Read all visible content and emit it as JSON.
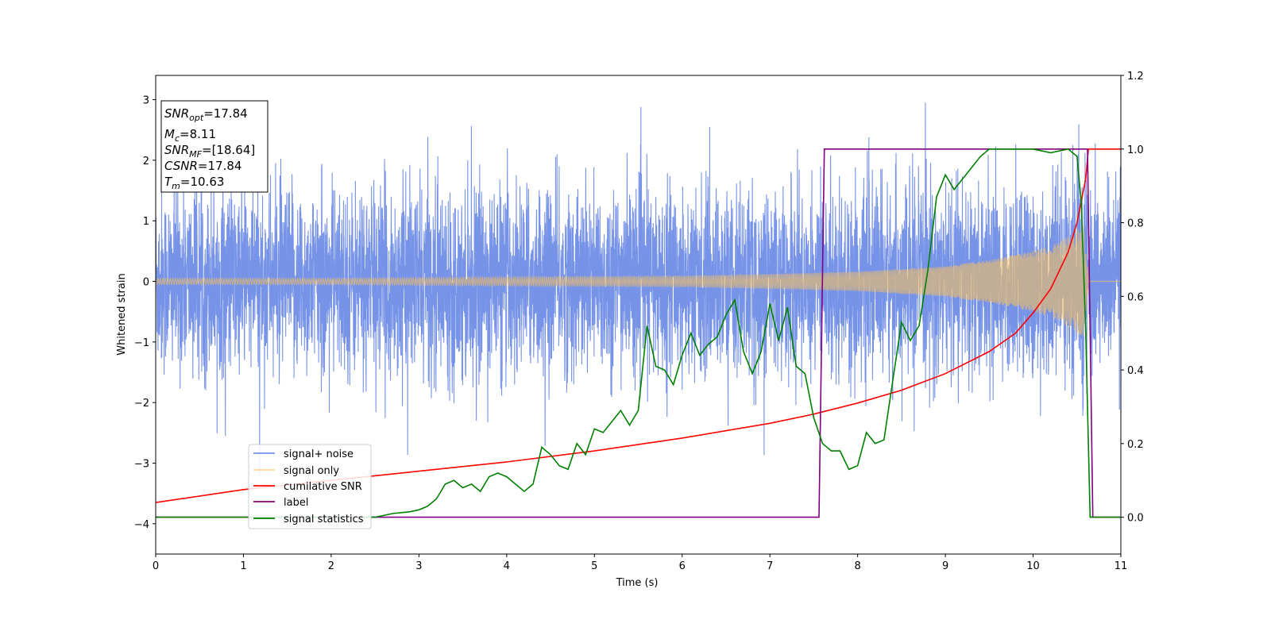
{
  "chart_data": {
    "type": "line",
    "xlabel": "Time (s)",
    "ylabel_left": "Whitened strain",
    "ylabel_right": "",
    "xlim": [
      0,
      11
    ],
    "ylim_left": [
      -4.5,
      3.4
    ],
    "ylim_right": [
      -0.1,
      1.2
    ],
    "xticks": [
      "0",
      "1",
      "2",
      "3",
      "4",
      "5",
      "6",
      "7",
      "8",
      "9",
      "10",
      "11"
    ],
    "yticks_left": [
      {
        "v": 3,
        "label": "3"
      },
      {
        "v": 2,
        "label": "2"
      },
      {
        "v": 1,
        "label": "1"
      },
      {
        "v": 0,
        "label": "0"
      },
      {
        "v": -1,
        "label": "−1"
      },
      {
        "v": -2,
        "label": "−2"
      },
      {
        "v": -3,
        "label": "−3"
      },
      {
        "v": -4,
        "label": "−4"
      }
    ],
    "yticks_right": [
      {
        "v": 0.0,
        "label": "0.0"
      },
      {
        "v": 0.2,
        "label": "0.2"
      },
      {
        "v": 0.4,
        "label": "0.4"
      },
      {
        "v": 0.6,
        "label": "0.6"
      },
      {
        "v": 0.8,
        "label": "0.8"
      },
      {
        "v": 1.0,
        "label": "1.0"
      },
      {
        "v": 1.2,
        "label": "1.2"
      }
    ],
    "grid": false,
    "legend_placement": "lower-left",
    "annotation": [
      {
        "sym": "SNR",
        "sub": "opt",
        "rest": "=17.84"
      },
      {
        "sym": "M",
        "sub": "c",
        "rest": "=8.11"
      },
      {
        "sym": "SNR",
        "sub": "MF",
        "rest": "=[18.64]"
      },
      {
        "sym": "CSNR",
        "sub": "",
        "rest": "=17.84"
      },
      {
        "sym": "T",
        "sub": "m",
        "rest": "=10.63"
      }
    ],
    "series": [
      {
        "name": "signal+ noise",
        "axis": "left",
        "color": "#6b8ae6",
        "noise_std": 0.75,
        "noise_extreme": [
          -4.2,
          3.03
        ]
      },
      {
        "name": "signal only",
        "axis": "left",
        "color": "#f5c060",
        "amplitude": [
          [
            0,
            0.05
          ],
          [
            2,
            0.05
          ],
          [
            4,
            0.07
          ],
          [
            6,
            0.09
          ],
          [
            7,
            0.12
          ],
          [
            8,
            0.16
          ],
          [
            9,
            0.25
          ],
          [
            9.5,
            0.35
          ],
          [
            10,
            0.5
          ],
          [
            10.3,
            0.65
          ],
          [
            10.5,
            0.85
          ],
          [
            10.6,
            0.95
          ],
          [
            10.63,
            0.0
          ],
          [
            11,
            0.0
          ]
        ]
      },
      {
        "name": "cumilative SNR",
        "axis": "right",
        "color": "#ff0000",
        "x": [
          0,
          1,
          2,
          3,
          4,
          5,
          6,
          7,
          7.5,
          8,
          8.5,
          9,
          9.5,
          9.8,
          10,
          10.2,
          10.4,
          10.5,
          10.6,
          10.63,
          11
        ],
        "y": [
          0.04,
          0.075,
          0.1,
          0.125,
          0.15,
          0.18,
          0.215,
          0.255,
          0.28,
          0.31,
          0.345,
          0.39,
          0.45,
          0.5,
          0.555,
          0.62,
          0.72,
          0.8,
          0.92,
          1.0,
          1.0
        ]
      },
      {
        "name": "label",
        "axis": "right",
        "color": "#800080",
        "x": [
          0,
          7.56,
          7.62,
          10.62,
          10.68,
          11
        ],
        "y": [
          0,
          0,
          1,
          1,
          0,
          0
        ]
      },
      {
        "name": "signal statistics",
        "axis": "right",
        "color": "#008000",
        "x": [
          0,
          2.5,
          2.7,
          2.9,
          3.0,
          3.1,
          3.2,
          3.3,
          3.4,
          3.5,
          3.6,
          3.7,
          3.8,
          3.9,
          4.0,
          4.1,
          4.2,
          4.3,
          4.4,
          4.5,
          4.6,
          4.7,
          4.8,
          4.9,
          5.0,
          5.1,
          5.2,
          5.3,
          5.4,
          5.5,
          5.6,
          5.7,
          5.8,
          5.9,
          6.0,
          6.1,
          6.2,
          6.3,
          6.4,
          6.5,
          6.6,
          6.7,
          6.8,
          6.9,
          7.0,
          7.1,
          7.2,
          7.3,
          7.4,
          7.5,
          7.6,
          7.7,
          7.8,
          7.9,
          8.0,
          8.1,
          8.2,
          8.3,
          8.4,
          8.5,
          8.6,
          8.7,
          8.8,
          8.9,
          9.0,
          9.1,
          9.2,
          9.3,
          9.4,
          9.5,
          9.6,
          9.8,
          10.0,
          10.2,
          10.4,
          10.5,
          10.55,
          10.6,
          10.65,
          10.7,
          11
        ],
        "y": [
          0.0,
          0.0,
          0.01,
          0.015,
          0.02,
          0.03,
          0.05,
          0.09,
          0.1,
          0.08,
          0.09,
          0.07,
          0.11,
          0.12,
          0.11,
          0.09,
          0.07,
          0.09,
          0.19,
          0.17,
          0.14,
          0.13,
          0.2,
          0.17,
          0.24,
          0.23,
          0.26,
          0.29,
          0.25,
          0.29,
          0.52,
          0.41,
          0.4,
          0.36,
          0.44,
          0.5,
          0.44,
          0.47,
          0.49,
          0.55,
          0.59,
          0.45,
          0.39,
          0.45,
          0.58,
          0.48,
          0.57,
          0.41,
          0.39,
          0.27,
          0.2,
          0.18,
          0.18,
          0.13,
          0.14,
          0.23,
          0.2,
          0.21,
          0.37,
          0.53,
          0.48,
          0.52,
          0.67,
          0.87,
          0.93,
          0.89,
          0.92,
          0.95,
          0.98,
          1.0,
          1.0,
          1.0,
          1.0,
          0.99,
          1.0,
          0.98,
          0.85,
          0.5,
          0.0,
          0.0,
          0.0
        ]
      }
    ]
  }
}
